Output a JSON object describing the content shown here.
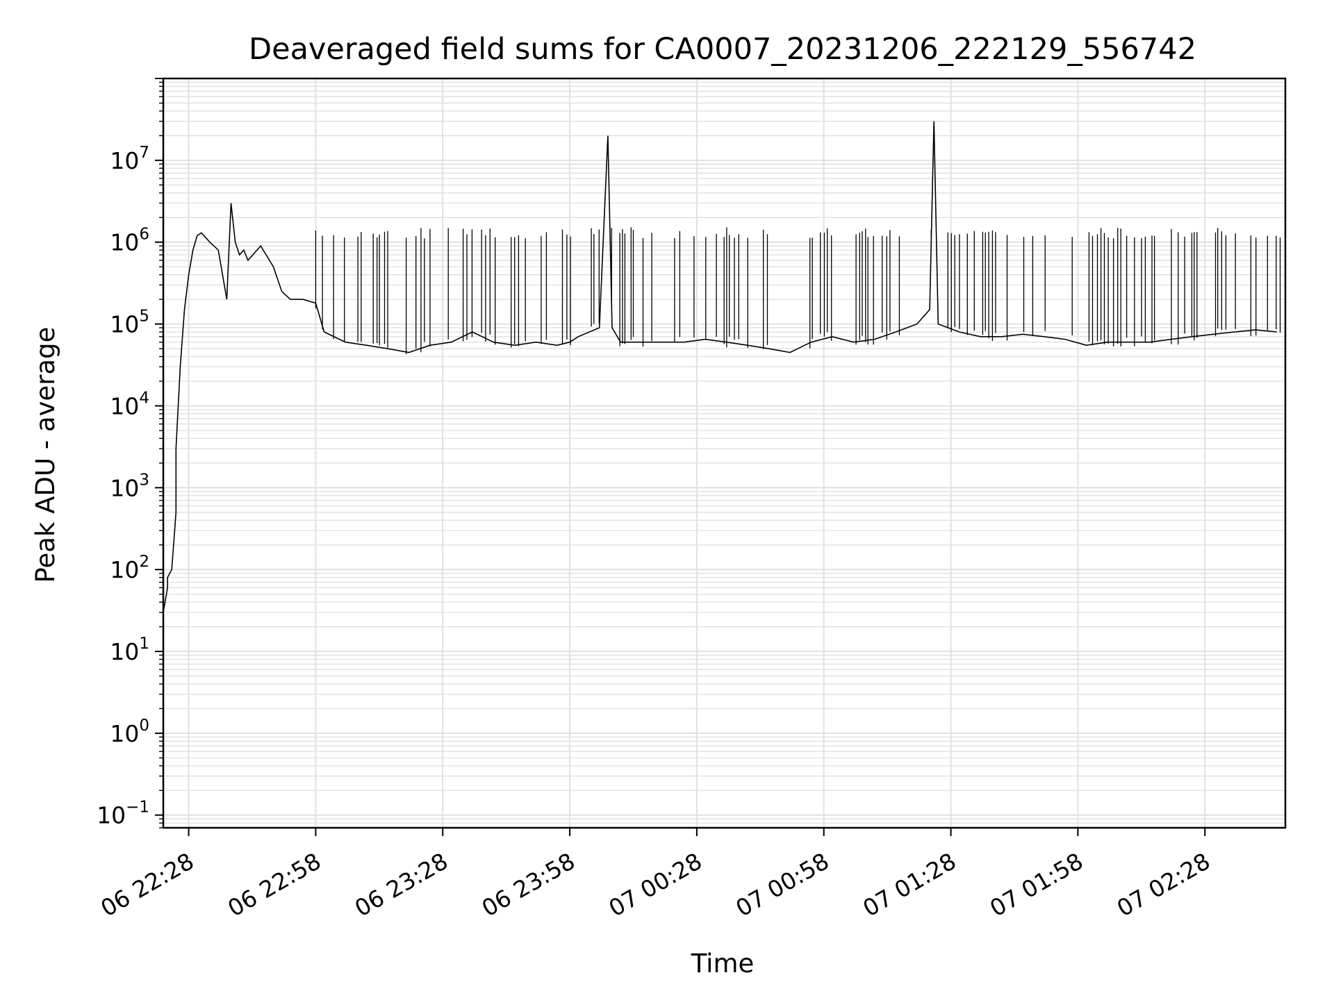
{
  "chart_data": {
    "type": "line",
    "title": "Deaveraged field sums for CA0007_20231206_222129_556742",
    "xlabel": "Time",
    "ylabel": "Peak ADU - average",
    "yscale": "log",
    "ylim": [
      0.07,
      100000000.0
    ],
    "xlim": [
      "06 22:22",
      "07 02:47"
    ],
    "x_ticks": [
      {
        "label": "06 22:28",
        "value": "06 22:28"
      },
      {
        "label": "06 22:58",
        "value": "06 22:58"
      },
      {
        "label": "06 23:28",
        "value": "06 23:28"
      },
      {
        "label": "06 23:58",
        "value": "06 23:58"
      },
      {
        "label": "07 00:28",
        "value": "07 00:28"
      },
      {
        "label": "07 00:58",
        "value": "07 00:58"
      },
      {
        "label": "07 01:28",
        "value": "07 01:28"
      },
      {
        "label": "07 01:58",
        "value": "07 01:58"
      },
      {
        "label": "07 02:28",
        "value": "07 02:28"
      }
    ],
    "y_ticks": [
      {
        "base": "10",
        "exp": "−1",
        "value": 0.1
      },
      {
        "base": "10",
        "exp": "0",
        "value": 1
      },
      {
        "base": "10",
        "exp": "1",
        "value": 10
      },
      {
        "base": "10",
        "exp": "2",
        "value": 100
      },
      {
        "base": "10",
        "exp": "3",
        "value": 1000
      },
      {
        "base": "10",
        "exp": "4",
        "value": 10000
      },
      {
        "base": "10",
        "exp": "5",
        "value": 100000
      },
      {
        "base": "10",
        "exp": "6",
        "value": 1000000
      },
      {
        "base": "10",
        "exp": "7",
        "value": 10000000
      }
    ],
    "grid": true,
    "line_color": "#000000",
    "grid_color": "#e0e0e0",
    "series": [
      {
        "x": [
          "06 22:22",
          "06 22:22",
          "06 22:23",
          "06 22:23",
          "06 22:24",
          "06 22:25",
          "06 22:25",
          "06 22:26",
          "06 22:27",
          "06 22:28",
          "06 22:29",
          "06 22:30",
          "06 22:31",
          "06 22:33",
          "06 22:35",
          "06 22:37",
          "06 22:38",
          "06 22:39",
          "06 22:40",
          "06 22:41",
          "06 22:42",
          "06 22:45",
          "06 22:48",
          "06 22:50",
          "06 22:52",
          "06 22:55",
          "06 22:58",
          "06 23:00",
          "06 23:05",
          "06 23:10",
          "06 23:15",
          "06 23:20",
          "06 23:25",
          "06 23:30",
          "06 23:35",
          "06 23:40",
          "06 23:45",
          "06 23:50",
          "06 23:55",
          "06 23:58",
          "06 24:00",
          "06 24:05",
          "06 24:07",
          "06 24:08",
          "06 24:10",
          "06 24:15",
          "06 24:20",
          "06 24:25",
          "06 24:30",
          "06 24:35",
          "06 24:40",
          "06 24:45",
          "06 24:50",
          "06 24:55",
          "06 25:00",
          "06 25:05",
          "06 25:10",
          "06 25:15",
          "06 25:20",
          "06 25:23",
          "06 25:24",
          "06 25:25",
          "06 25:30",
          "06 25:35",
          "06 25:40",
          "06 25:45",
          "06 25:50",
          "06 25:55",
          "06 26:00",
          "06 26:05",
          "06 26:10",
          "06 26:15",
          "06 26:20",
          "06 26:25",
          "06 26:30",
          "06 26:35",
          "06 26:40",
          "06 26:45"
        ],
        "y": [
          5,
          30,
          60,
          80,
          100,
          500,
          3000,
          30000,
          150000,
          400000,
          800000,
          1200000,
          1300000,
          1000000,
          800000,
          200000,
          3000000,
          1000000,
          700000,
          800000,
          600000,
          900000,
          500000,
          250000,
          200000,
          200000,
          180000,
          80000,
          60000,
          55000,
          50000,
          45000,
          55000,
          60000,
          80000,
          60000,
          55000,
          60000,
          55000,
          60000,
          70000,
          90000,
          20000000,
          90000,
          60000,
          60000,
          60000,
          60000,
          65000,
          60000,
          55000,
          50000,
          45000,
          60000,
          70000,
          60000,
          65000,
          80000,
          100000,
          150000,
          30000000,
          100000,
          80000,
          70000,
          70000,
          75000,
          70000,
          65000,
          55000,
          60000,
          60000,
          60000,
          65000,
          70000,
          75000,
          80000,
          85000,
          80000
        ]
      }
    ]
  }
}
